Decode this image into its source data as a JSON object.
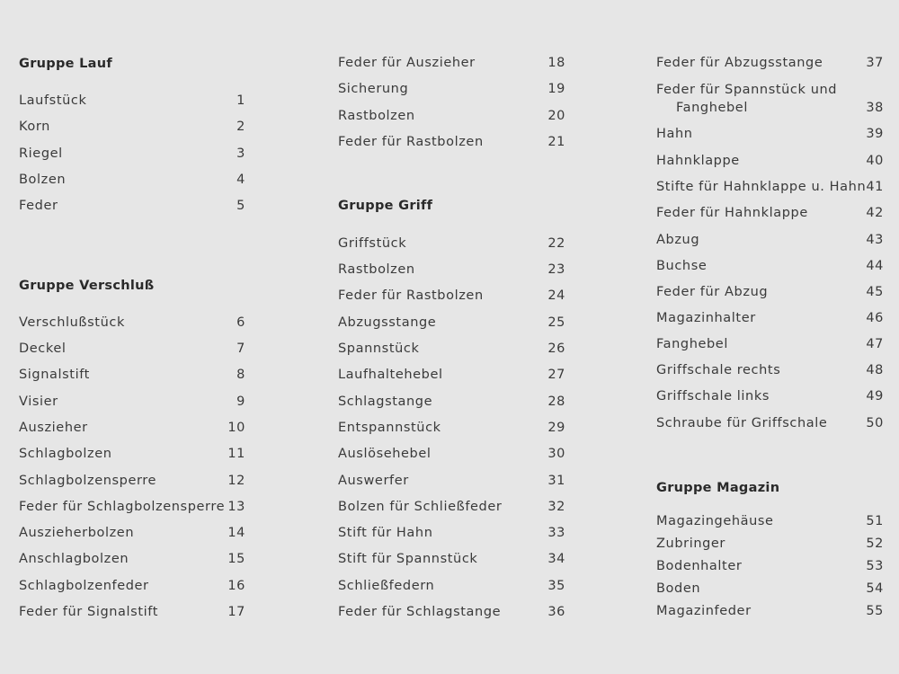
{
  "columns": [
    {
      "groups": [
        {
          "title": "Gruppe Lauf",
          "items": [
            {
              "name": "Laufstück",
              "number": "1"
            },
            {
              "name": "Korn",
              "number": "2"
            },
            {
              "name": "Riegel",
              "number": "3"
            },
            {
              "name": "Bolzen",
              "number": "4"
            },
            {
              "name": "Feder",
              "number": "5"
            }
          ]
        },
        {
          "title": "Gruppe Verschluß",
          "items": [
            {
              "name": "Verschlußstück",
              "number": "6"
            },
            {
              "name": "Deckel",
              "number": "7"
            },
            {
              "name": "Signalstift",
              "number": "8"
            },
            {
              "name": "Visier",
              "number": "9"
            },
            {
              "name": "Auszieher",
              "number": "10"
            },
            {
              "name": "Schlagbolzen",
              "number": "11"
            },
            {
              "name": "Schlagbolzensperre",
              "number": "12"
            },
            {
              "name": "Feder für Schlagbolzensperre",
              "number": "13"
            },
            {
              "name": "Auszieherbolzen",
              "number": "14"
            },
            {
              "name": "Anschlagbolzen",
              "number": "15"
            },
            {
              "name": "Schlagbolzenfeder",
              "number": "16"
            },
            {
              "name": "Feder für Signalstift",
              "number": "17"
            }
          ]
        }
      ]
    },
    {
      "groups": [
        {
          "title": "",
          "items": [
            {
              "name": "Feder für Auszieher",
              "number": "18"
            },
            {
              "name": "Sicherung",
              "number": "19"
            },
            {
              "name": "Rastbolzen",
              "number": "20"
            },
            {
              "name": "Feder für Rastbolzen",
              "number": "21"
            }
          ]
        },
        {
          "title": "Gruppe Griff",
          "items": [
            {
              "name": "Griffstück",
              "number": "22"
            },
            {
              "name": "Rastbolzen",
              "number": "23"
            },
            {
              "name": "Feder für Rastbolzen",
              "number": "24"
            },
            {
              "name": "Abzugsstange",
              "number": "25"
            },
            {
              "name": "Spannstück",
              "number": "26"
            },
            {
              "name": "Laufhaltehebel",
              "number": "27"
            },
            {
              "name": "Schlagstange",
              "number": "28"
            },
            {
              "name": "Entspannstück",
              "number": "29"
            },
            {
              "name": "Auslösehebel",
              "number": "30"
            },
            {
              "name": "Auswerfer",
              "number": "31"
            },
            {
              "name": "Bolzen für Schließfeder",
              "number": "32"
            },
            {
              "name": "Stift für Hahn",
              "number": "33"
            },
            {
              "name": "Stift für Spannstück",
              "number": "34"
            },
            {
              "name": "Schließfedern",
              "number": "35"
            },
            {
              "name": "Feder für Schlagstange",
              "number": "36"
            }
          ]
        }
      ]
    },
    {
      "groups": [
        {
          "title": "",
          "items": [
            {
              "name": "Feder für Abzugsstange",
              "number": "37"
            },
            {
              "name": "Feder für Spannstück und",
              "name_cont": "Fanghebel",
              "number": "38"
            },
            {
              "name": "Hahn",
              "number": "39"
            },
            {
              "name": "Hahnklappe",
              "number": "40"
            },
            {
              "name": "Stifte für Hahnklappe u. Hahn",
              "number": "41"
            },
            {
              "name": "Feder für Hahnklappe",
              "number": "42"
            },
            {
              "name": "Abzug",
              "number": "43"
            },
            {
              "name": "Buchse",
              "number": "44"
            },
            {
              "name": "Feder für Abzug",
              "number": "45"
            },
            {
              "name": "Magazinhalter",
              "number": "46"
            },
            {
              "name": "Fanghebel",
              "number": "47"
            },
            {
              "name": "Griffschale rechts",
              "number": "48"
            },
            {
              "name": "Griffschale links",
              "number": "49"
            },
            {
              "name": "Schraube für Griffschale",
              "number": "50"
            }
          ]
        },
        {
          "title": "Gruppe Magazin",
          "items": [
            {
              "name": "Magazingehäuse",
              "number": "51"
            },
            {
              "name": "Zubringer",
              "number": "52"
            },
            {
              "name": "Bodenhalter",
              "number": "53"
            },
            {
              "name": "Boden",
              "number": "54"
            },
            {
              "name": "Magazinfeder",
              "number": "55"
            }
          ]
        }
      ]
    }
  ]
}
